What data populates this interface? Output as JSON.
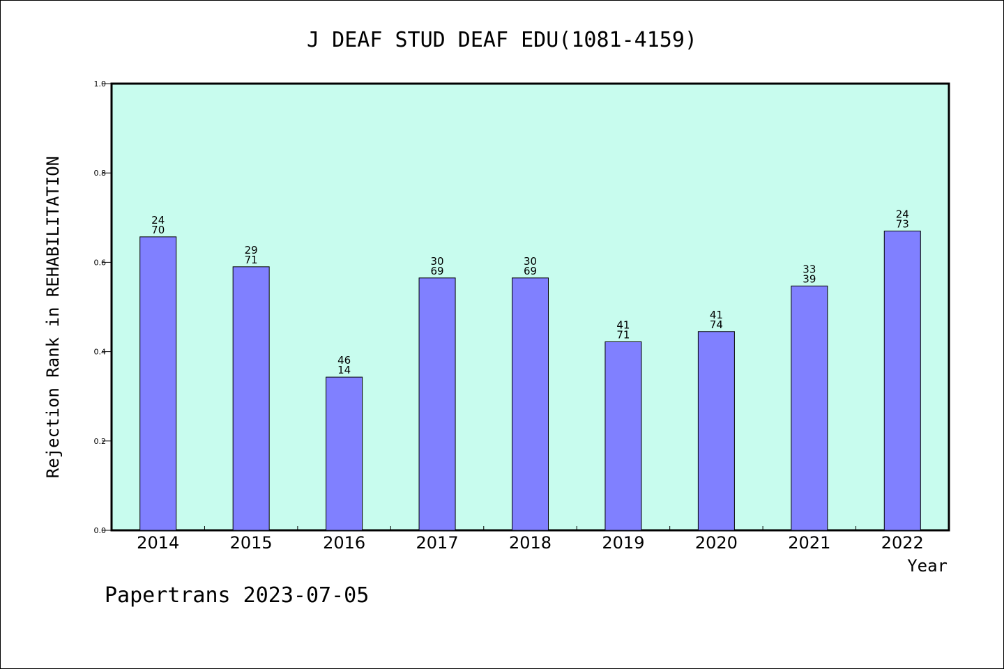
{
  "chart_data": {
    "type": "bar",
    "title": "J DEAF STUD DEAF EDU(1081-4159)",
    "xlabel": "Year",
    "ylabel": "Rejection Rank in REHABILITATION",
    "ylim": [
      0.0,
      1.0
    ],
    "yticks": [
      "0.0",
      "0.2",
      "0.4",
      "0.6",
      "0.8",
      "1.0"
    ],
    "categories": [
      "2014",
      "2015",
      "2016",
      "2017",
      "2018",
      "2019",
      "2020",
      "2021",
      "2022"
    ],
    "values": [
      0.657,
      0.59,
      0.343,
      0.565,
      0.565,
      0.422,
      0.445,
      0.547,
      0.67
    ],
    "bar_labels": [
      [
        "24",
        "70"
      ],
      [
        "29",
        "71"
      ],
      [
        "46",
        "14"
      ],
      [
        "30",
        "69"
      ],
      [
        "30",
        "69"
      ],
      [
        "41",
        "71"
      ],
      [
        "41",
        "74"
      ],
      [
        "33",
        "39"
      ],
      [
        "24",
        "73"
      ]
    ],
    "grid": false,
    "colors": {
      "plot_background": "#c8fcee",
      "bar_fill": "#8080ff",
      "bar_stroke": "#000000"
    }
  },
  "footer": {
    "text": "Papertrans 2023-07-05"
  }
}
